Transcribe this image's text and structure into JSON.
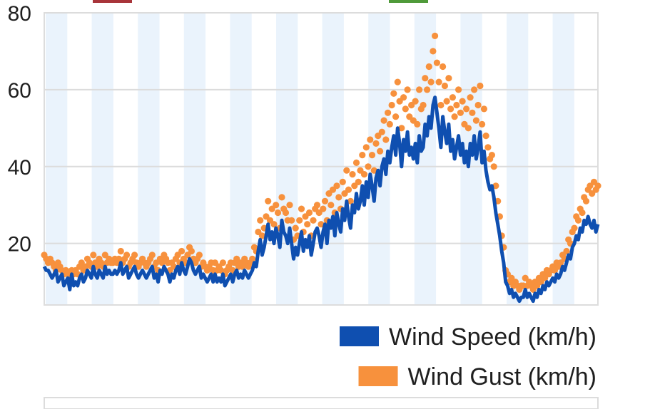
{
  "chart_data": {
    "type": "line",
    "ylim": [
      4,
      80
    ],
    "yticks": [
      20,
      40,
      60,
      80
    ],
    "grid": true,
    "legend_position": "bottom-right",
    "legend": [
      {
        "label": "Wind Speed (km/h)",
        "color": "#0f4fb0",
        "kind": "line"
      },
      {
        "label": "Wind Gust (km/h)",
        "color": "#f7913d",
        "kind": "dots"
      }
    ],
    "series": [
      {
        "name": "Wind Speed (km/h)",
        "color": "#0f4fb0",
        "values": [
          14,
          13,
          13,
          12,
          11,
          12,
          13,
          10,
          11,
          12,
          9,
          10,
          11,
          8,
          12,
          9,
          10,
          9,
          11,
          12,
          10,
          11,
          13,
          12,
          11,
          14,
          12,
          11,
          13,
          12,
          11,
          14,
          12,
          13,
          12,
          12,
          13,
          12,
          13,
          15,
          12,
          13,
          14,
          11,
          12,
          13,
          14,
          12,
          11,
          12,
          13,
          12,
          11,
          12,
          13,
          14,
          11,
          12,
          10,
          13,
          12,
          14,
          13,
          12,
          10,
          12,
          11,
          13,
          14,
          12,
          15,
          13,
          12,
          14,
          16,
          15,
          13,
          12,
          13,
          14,
          11,
          12,
          11,
          10,
          11,
          12,
          10,
          12,
          10,
          11,
          10,
          12,
          9,
          10,
          11,
          12,
          10,
          12,
          13,
          11,
          12,
          11,
          13,
          12,
          11,
          12,
          13,
          15,
          14,
          18,
          21,
          17,
          19,
          22,
          25,
          21,
          23,
          20,
          24,
          22,
          19,
          26,
          23,
          22,
          20,
          24,
          20,
          16,
          19,
          17,
          20,
          23,
          18,
          21,
          19,
          22,
          17,
          20,
          23,
          24,
          22,
          19,
          23,
          25,
          20,
          26,
          24,
          27,
          22,
          28,
          25,
          23,
          29,
          26,
          31,
          27,
          24,
          30,
          28,
          33,
          29,
          31,
          35,
          30,
          36,
          32,
          38,
          35,
          31,
          37,
          39,
          35,
          40,
          42,
          38,
          44,
          41,
          45,
          48,
          43,
          50,
          46,
          40,
          47,
          44,
          49,
          43,
          45,
          42,
          46,
          41,
          48,
          44,
          45,
          51,
          48,
          53,
          50,
          56,
          58,
          54,
          50,
          45,
          53,
          49,
          46,
          51,
          44,
          47,
          42,
          45,
          48,
          43,
          46,
          41,
          44,
          40,
          46,
          43,
          48,
          42,
          45,
          49,
          41,
          44,
          39,
          36,
          34,
          35,
          32,
          28,
          25,
          22,
          18,
          15,
          10,
          9,
          7,
          8,
          6,
          7,
          6,
          5,
          6,
          6,
          8,
          6,
          7,
          6,
          5,
          7,
          6,
          8,
          7,
          9,
          8,
          10,
          9,
          10,
          11,
          10,
          12,
          11,
          12,
          14,
          13,
          15,
          17,
          16,
          19,
          20,
          22,
          21,
          24,
          23,
          26,
          25,
          27,
          25,
          24,
          26,
          23,
          25
        ]
      },
      {
        "name": "Wind Gust (km/h)",
        "color": "#f7913d",
        "values": [
          17,
          16,
          15,
          16,
          15,
          14,
          13,
          15,
          14,
          13,
          12,
          13,
          12,
          11,
          13,
          12,
          13,
          12,
          14,
          15,
          13,
          14,
          16,
          15,
          14,
          17,
          15,
          14,
          16,
          15,
          14,
          17,
          15,
          16,
          15,
          15,
          16,
          15,
          16,
          18,
          15,
          16,
          17,
          14,
          15,
          16,
          17,
          15,
          14,
          15,
          16,
          15,
          14,
          15,
          16,
          17,
          14,
          15,
          13,
          16,
          15,
          17,
          16,
          15,
          13,
          15,
          14,
          16,
          17,
          15,
          18,
          16,
          15,
          17,
          19,
          18,
          16,
          15,
          16,
          17,
          14,
          15,
          14,
          13,
          14,
          15,
          13,
          15,
          13,
          14,
          13,
          15,
          12,
          13,
          14,
          15,
          13,
          15,
          16,
          14,
          15,
          14,
          16,
          15,
          14,
          15,
          16,
          19,
          18,
          23,
          26,
          22,
          24,
          27,
          31,
          26,
          29,
          25,
          30,
          28,
          24,
          32,
          29,
          28,
          26,
          30,
          26,
          21,
          24,
          22,
          26,
          29,
          23,
          27,
          25,
          28,
          22,
          26,
          29,
          30,
          28,
          25,
          29,
          31,
          26,
          33,
          30,
          34,
          28,
          35,
          32,
          29,
          36,
          33,
          39,
          34,
          31,
          38,
          35,
          41,
          36,
          39,
          43,
          38,
          45,
          40,
          47,
          43,
          39,
          46,
          48,
          44,
          49,
          52,
          47,
          54,
          51,
          56,
          59,
          53,
          62,
          57,
          50,
          58,
          55,
          60,
          53,
          56,
          52,
          57,
          51,
          60,
          55,
          56,
          63,
          60,
          66,
          62,
          70,
          74,
          67,
          62,
          56,
          66,
          61,
          57,
          63,
          55,
          58,
          53,
          56,
          60,
          54,
          57,
          51,
          55,
          50,
          58,
          54,
          60,
          52,
          56,
          61,
          51,
          55,
          48,
          45,
          42,
          43,
          40,
          35,
          31,
          27,
          22,
          19,
          13,
          12,
          10,
          11,
          9,
          10,
          9,
          8,
          9,
          9,
          11,
          9,
          10,
          9,
          8,
          10,
          9,
          11,
          10,
          12,
          11,
          13,
          12,
          13,
          14,
          13,
          15,
          14,
          15,
          17,
          16,
          18,
          21,
          20,
          23,
          24,
          27,
          26,
          29,
          28,
          32,
          31,
          34,
          35,
          33,
          36,
          34,
          35
        ]
      }
    ]
  }
}
